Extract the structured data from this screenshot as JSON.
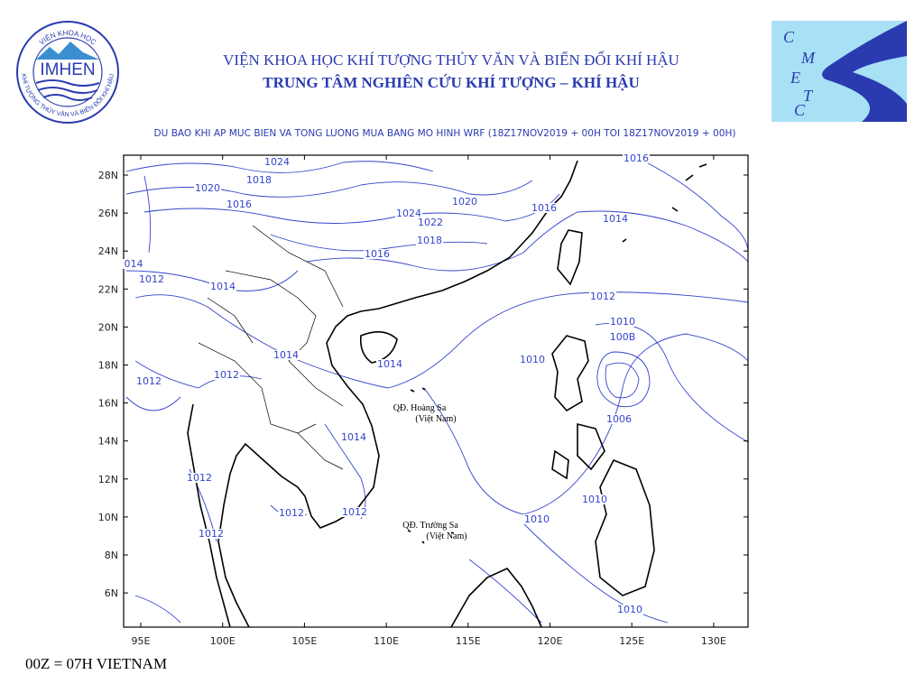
{
  "header": {
    "institute": "VIỆN KHOA HỌC KHÍ TƯỢNG THỦY VĂN VÀ BIẾN ĐỔI KHÍ HẬU",
    "center": "TRUNG TÂM NGHIÊN CỨU KHÍ TƯỢNG – KHÍ HẬU",
    "subtitle": "DU BAO KHI AP MUC BIEN VA TONG LUONG MUA BANG MO HINH WRF (18Z17NOV2019 + 00H TOI 18Z17NOV2019 + 00H)"
  },
  "logo_left": {
    "name": "IMHEN",
    "ring_top": "VIỆN KHOA HỌC",
    "ring_bottom": "KHÍ TƯỢNG THỦY VĂN VÀ BIẾN ĐỔI KHÍ HẬU"
  },
  "logo_right": {
    "letters": [
      "C",
      "M",
      "E",
      "T",
      "C"
    ]
  },
  "map": {
    "lat_labels": [
      "28N",
      "26N",
      "24N",
      "22N",
      "20N",
      "18N",
      "16N",
      "14N",
      "12N",
      "10N",
      "8N",
      "6N"
    ],
    "lon_labels": [
      "95E",
      "100E",
      "105E",
      "110E",
      "115E",
      "120E",
      "125E",
      "130E"
    ],
    "contour_labels": [
      "1024",
      "1018",
      "1020",
      "1016",
      "1020",
      "1024",
      "1022",
      "1018",
      "1016",
      "1016",
      "1014",
      "1016",
      "014",
      "1012",
      "1014",
      "1012",
      "1010",
      "100B",
      "1014",
      "1014",
      "1010",
      "1012",
      "1012",
      "1006",
      "1014",
      "1012",
      "1010",
      "1010",
      "1012",
      "1012",
      "1012",
      "1010"
    ],
    "places": [
      {
        "name": "QĐ. Hoàng Sa",
        "country": "(Việt Nam)"
      },
      {
        "name": "QĐ. Trường Sa",
        "country": "(Việt Nam)"
      }
    ]
  },
  "footer": "00Z = 07H VIETNAM"
}
